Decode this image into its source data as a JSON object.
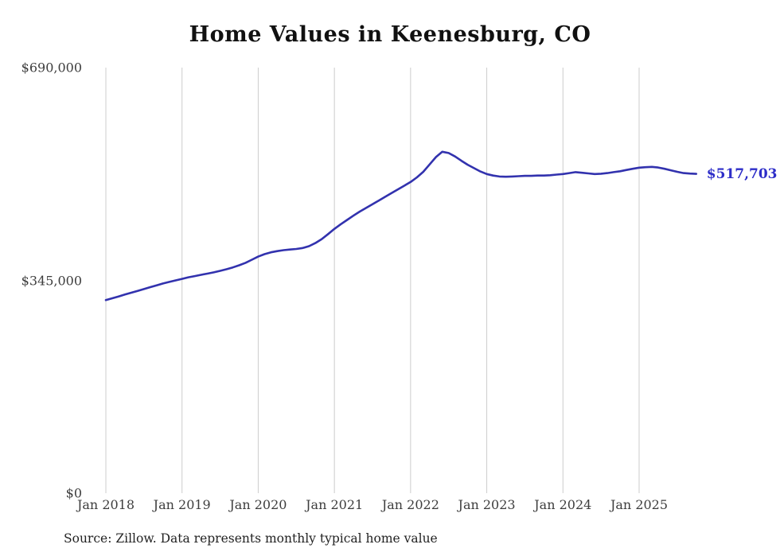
{
  "title": "Home Values in Keenesburg, CO",
  "end_label": "$517,703",
  "source_note": "Source: Zillow. Data represents monthly typical home value",
  "colors": {
    "line": "#3232ae",
    "end_label": "#2d2dc8",
    "gridline": "#cccccc",
    "axis_text": "#3d3d3d",
    "background": "#ffffff"
  },
  "chart_data": {
    "type": "line",
    "title": "Home Values in Keenesburg, CO",
    "xlabel": "",
    "ylabel": "",
    "ylim": [
      0,
      690000
    ],
    "y_tick_values": [
      0,
      345000,
      690000
    ],
    "y_tick_labels": [
      "$0",
      "$345,000",
      "$690,000"
    ],
    "x_tick_labels": [
      "Jan 2018",
      "Jan 2019",
      "Jan 2020",
      "Jan 2021",
      "Jan 2022",
      "Jan 2023",
      "Jan 2024",
      "Jan 2025"
    ],
    "grid": "vertical-only",
    "legend": "none",
    "series": [
      {
        "name": "Typical home value",
        "frequency": "monthly",
        "start_month": "2018-01",
        "end_month": "2025-10",
        "final_value": 517703,
        "values": [
          313000,
          316000,
          319000,
          322000,
          325000,
          328000,
          331000,
          334000,
          337000,
          340000,
          342500,
          345000,
          347500,
          350000,
          352000,
          354000,
          356000,
          358000,
          360500,
          363000,
          366000,
          369500,
          373500,
          378500,
          383500,
          387500,
          390500,
          392500,
          394000,
          395000,
          396000,
          397500,
          400500,
          405500,
          412000,
          420000,
          428500,
          436000,
          443000,
          450000,
          456500,
          462500,
          468500,
          474500,
          480500,
          486500,
          492500,
          498500,
          504500,
          512000,
          521000,
          533000,
          545000,
          553500,
          551500,
          546000,
          539000,
          532500,
          527000,
          521500,
          517500,
          515000,
          513500,
          513000,
          513500,
          514000,
          514500,
          514500,
          515000,
          515000,
          515500,
          516500,
          517500,
          519000,
          520500,
          519500,
          518500,
          517500,
          518000,
          519000,
          520500,
          522000,
          524000,
          526000,
          527800,
          528500,
          529000,
          528000,
          526000,
          523500,
          521000,
          519000,
          518200,
          517703
        ]
      }
    ]
  }
}
